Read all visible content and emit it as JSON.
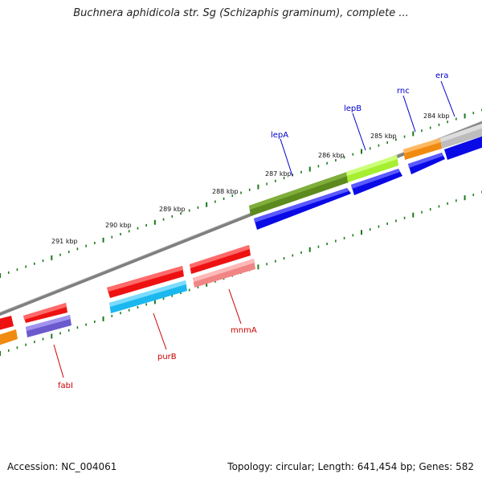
{
  "title": "Buchnera aphidicola str. Sg (Schizaphis graminum), complete ...",
  "footer": {
    "accession": "Accession: NC_004061",
    "summary": "Topology: circular; Length: 641,454 bp; Genes: 582"
  },
  "ruler_labels": [
    "284 kbp",
    "285 kbp",
    "286 kbp",
    "287 kbp",
    "288 kbp",
    "289 kbp",
    "290 kbp",
    "291 kbp"
  ],
  "gene_labels": [
    {
      "name": "era",
      "color": "#0000cc"
    },
    {
      "name": "rnc",
      "color": "#0000cc"
    },
    {
      "name": "lepB",
      "color": "#0000cc"
    },
    {
      "name": "lepA",
      "color": "#0000cc"
    },
    {
      "name": "mnmA",
      "color": "#cc0000"
    },
    {
      "name": "purB",
      "color": "#cc0000"
    },
    {
      "name": "fabI",
      "color": "#cc0000"
    }
  ],
  "colors": {
    "backbone": "#808080",
    "ticks": "#1a7a1a",
    "forward_red": "#ee1111",
    "reverse_blue": "#0a0ae6",
    "olive": "#5f8a1f",
    "lime": "#aaf03a",
    "orange": "#f08a10",
    "grey": "#c0c0c0",
    "cyan": "#1ab8ee",
    "pink": "#f08585",
    "purple": "#6a5acd"
  }
}
